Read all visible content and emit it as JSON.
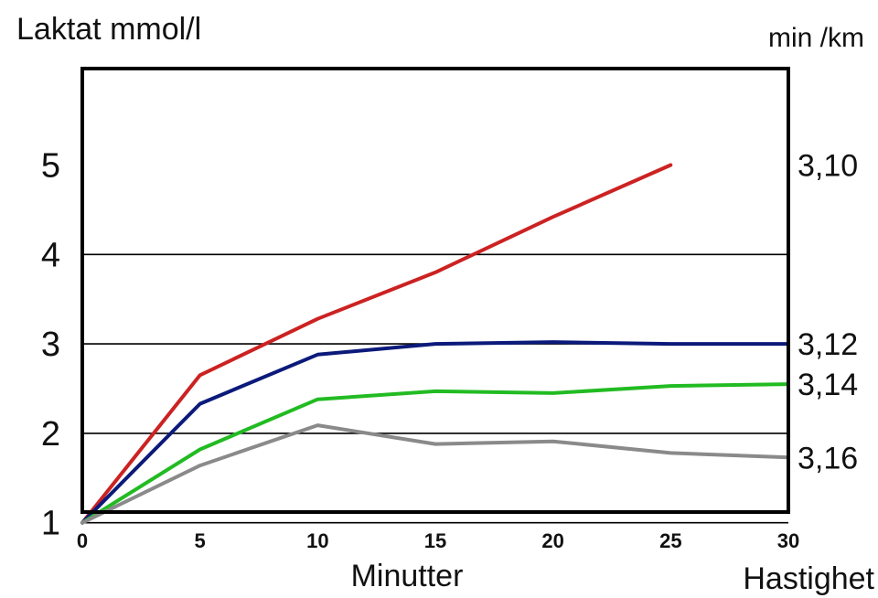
{
  "chart_data": {
    "type": "line",
    "ylabel": "Laktat mmol/l",
    "xlabel": "Minutter",
    "y2label": "min /km",
    "x2label": "Hastighet",
    "x": [
      0,
      5,
      10,
      15,
      20,
      25,
      30
    ],
    "xlim": [
      0,
      30
    ],
    "ylim": [
      0,
      5
    ],
    "y_ticks": [
      1,
      2,
      3,
      4,
      5
    ],
    "x_ticks": [
      0,
      5,
      10,
      15,
      20,
      25,
      30
    ],
    "grid": "horizontal",
    "series": [
      {
        "name": "3,10",
        "color": "#cc2222",
        "x": [
          0,
          5,
          10,
          15,
          20,
          25
        ],
        "values": [
          1.0,
          2.65,
          3.28,
          3.8,
          4.42,
          5.0
        ]
      },
      {
        "name": "3,12",
        "color": "#0b1a7a",
        "x": [
          0,
          5,
          10,
          15,
          20,
          25,
          30
        ],
        "values": [
          1.0,
          2.33,
          2.88,
          3.0,
          3.02,
          3.0,
          3.0
        ]
      },
      {
        "name": "3,14",
        "color": "#22bb22",
        "x": [
          0,
          5,
          10,
          15,
          20,
          25,
          30
        ],
        "values": [
          1.0,
          1.82,
          2.38,
          2.47,
          2.45,
          2.53,
          2.55
        ]
      },
      {
        "name": "3,16",
        "color": "#8a8a8a",
        "x": [
          0,
          5,
          10,
          15,
          20,
          25,
          30
        ],
        "values": [
          1.0,
          1.64,
          2.09,
          1.88,
          1.91,
          1.78,
          1.73
        ]
      }
    ]
  }
}
